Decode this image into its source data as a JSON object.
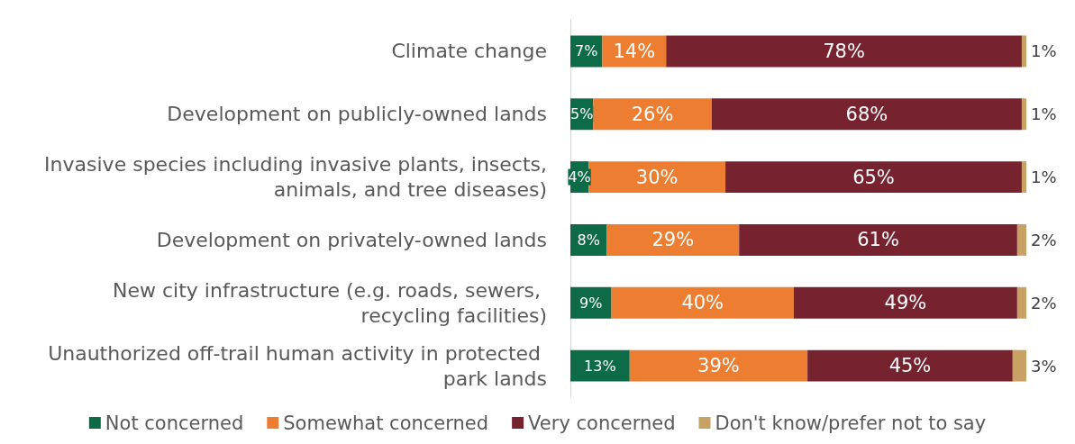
{
  "chart_data": {
    "type": "bar",
    "orientation": "horizontal",
    "stacked": true,
    "legend": "bottom",
    "categories": [
      "Climate change",
      "Development on publicly-owned lands",
      "Invasive species including invasive plants, insects, animals, and tree diseases)",
      "Development on privately-owned lands",
      "New city infrastructure (e.g. roads, sewers, recycling facilities)",
      "Unauthorized off-trail human activity in protected park lands"
    ],
    "series": [
      {
        "name": "Not concerned",
        "color": "#0e6b47",
        "values": [
          7,
          5,
          4,
          8,
          9,
          13
        ],
        "value_labels": [
          "7%",
          "5%",
          "4%",
          "8%",
          "9%",
          "13%"
        ]
      },
      {
        "name": "Somewhat concerned",
        "color": "#ed7d31",
        "values": [
          14,
          26,
          30,
          29,
          40,
          39
        ],
        "value_labels": [
          "14%",
          "26%",
          "30%",
          "29%",
          "40%",
          "39%"
        ]
      },
      {
        "name": "Very concerned",
        "color": "#76232f",
        "values": [
          78,
          68,
          65,
          61,
          49,
          45
        ],
        "value_labels": [
          "78%",
          "68%",
          "65%",
          "61%",
          "49%",
          "45%"
        ]
      },
      {
        "name": "Don't know/prefer not to say",
        "color": "#c8a165",
        "values": [
          1,
          1,
          1,
          2,
          2,
          3
        ],
        "value_labels": [
          "1%",
          "1%",
          "1%",
          "2%",
          "2%",
          "3%"
        ]
      }
    ]
  }
}
